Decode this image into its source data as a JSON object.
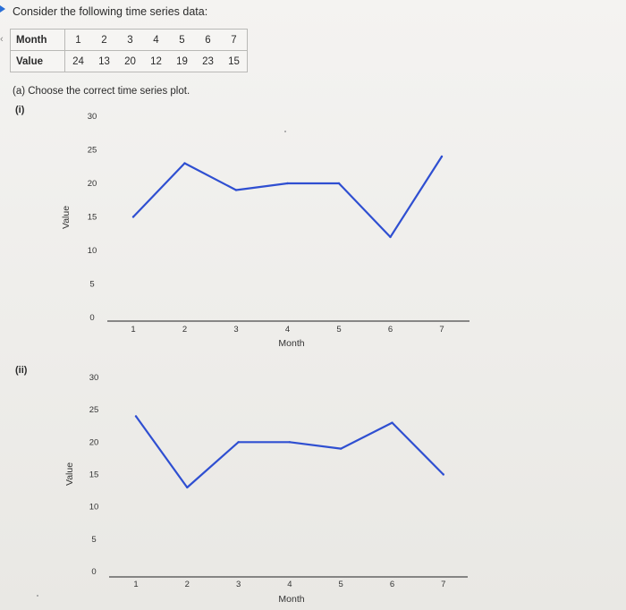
{
  "intro": "Consider the following time series data:",
  "table": {
    "row_labels": [
      "Month",
      "Value"
    ],
    "months": [
      "1",
      "2",
      "3",
      "4",
      "5",
      "6",
      "7"
    ],
    "values": [
      "24",
      "13",
      "20",
      "12",
      "19",
      "23",
      "15"
    ]
  },
  "question": "(a) Choose the correct time series plot.",
  "chart_data": [
    {
      "option": "(i)",
      "type": "line",
      "x": [
        1,
        2,
        3,
        4,
        5,
        6,
        7
      ],
      "y": [
        15,
        23,
        19,
        20,
        20,
        12,
        24
      ],
      "xlabel": "Month",
      "ylabel": "Value",
      "xticks": [
        "1",
        "2",
        "3",
        "4",
        "5",
        "6",
        "7"
      ],
      "yticks": [
        "0",
        "5",
        "10",
        "15",
        "20",
        "25",
        "30"
      ],
      "ylim": [
        0,
        30
      ],
      "color": "#2f4fd1"
    },
    {
      "option": "(ii)",
      "type": "line",
      "x": [
        1,
        2,
        3,
        4,
        5,
        6,
        7
      ],
      "y": [
        24,
        13,
        20,
        20,
        19,
        23,
        15
      ],
      "xlabel": "Month",
      "ylabel": "Value",
      "xticks": [
        "1",
        "2",
        "3",
        "4",
        "5",
        "6",
        "7"
      ],
      "yticks": [
        "0",
        "5",
        "10",
        "15",
        "20",
        "25",
        "30"
      ],
      "ylim": [
        0,
        30
      ],
      "color": "#2f4fd1"
    }
  ]
}
